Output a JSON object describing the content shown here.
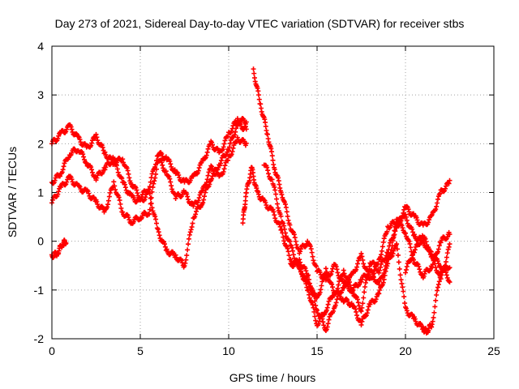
{
  "chart_data": {
    "type": "scatter",
    "title": "Day 273 of 2021, Sidereal Day-to-day VTEC variation (SDTVAR) for receiver stbs",
    "xlabel": "GPS time / hours",
    "ylabel": "SDTVAR / TECUs",
    "xlim": [
      0,
      25
    ],
    "ylim": [
      -2,
      4
    ],
    "xticks": [
      0,
      5,
      10,
      15,
      20,
      25
    ],
    "yticks": [
      -2,
      -1,
      0,
      1,
      2,
      3,
      4
    ],
    "grid": true,
    "legend": "none",
    "marker": "plus",
    "color": "#ff0000",
    "series": [
      {
        "x": [
          0,
          0.5,
          1,
          1.5,
          2,
          2.5,
          3,
          3.5,
          4,
          4.5,
          5,
          5.5,
          6,
          6.5,
          7,
          7.5,
          8,
          8.5,
          9,
          9.5,
          10,
          10.5,
          11
        ],
        "values": [
          2.0,
          2.2,
          2.35,
          2.1,
          1.9,
          2.15,
          1.8,
          1.6,
          1.7,
          1.2,
          0.9,
          1.1,
          1.8,
          1.7,
          1.4,
          1.2,
          1.3,
          1.6,
          2.0,
          1.8,
          2.2,
          2.5,
          2.45
        ]
      },
      {
        "x": [
          0,
          0.5,
          1,
          1.5,
          2,
          2.5,
          3,
          3.5,
          4,
          4.5,
          5,
          5.5,
          6,
          6.5,
          7,
          7.5,
          8,
          8.5,
          9,
          9.5,
          10,
          10.5,
          11
        ],
        "values": [
          1.2,
          1.4,
          1.8,
          1.9,
          1.6,
          1.3,
          1.5,
          1.7,
          1.2,
          0.9,
          0.8,
          1.0,
          0.2,
          -0.2,
          -0.3,
          -0.5,
          0.5,
          0.8,
          1.3,
          1.6,
          1.9,
          2.4,
          2.3
        ]
      },
      {
        "x": [
          0,
          0.5,
          1,
          1.5,
          2,
          2.5,
          3,
          3.5,
          4,
          4.5,
          5,
          5.5,
          6,
          6.5,
          7,
          7.5,
          8,
          8.5,
          9,
          9.5,
          10,
          10.5,
          11
        ],
        "values": [
          0.8,
          1.1,
          1.3,
          1.1,
          1.0,
          0.8,
          0.6,
          1.2,
          0.6,
          0.4,
          0.5,
          0.6,
          1.7,
          1.4,
          0.9,
          1.0,
          0.7,
          1.0,
          1.5,
          1.3,
          1.7,
          2.1,
          2.0
        ]
      },
      {
        "x": [
          0,
          0.3,
          0.6,
          0.8
        ],
        "values": [
          -0.3,
          -0.25,
          -0.05,
          0.0
        ]
      },
      {
        "x": [
          10.8,
          11,
          11.3,
          11.6,
          12,
          12.5,
          13,
          13.5,
          14,
          14.5,
          15,
          15.5,
          16,
          16.5,
          17,
          17.5,
          18,
          18.5,
          19,
          19.5,
          20,
          20.5,
          21,
          21.5,
          22,
          22.5
        ],
        "values": [
          0.4,
          1.0,
          1.5,
          1.0,
          0.8,
          0.6,
          0.2,
          -0.4,
          -0.5,
          -1.0,
          -1.7,
          -1.4,
          -1.0,
          -1.2,
          -1.3,
          -1.7,
          -1.3,
          -1.1,
          -0.5,
          0.4,
          0.5,
          0.1,
          0.0,
          -0.3,
          -0.5,
          -0.8
        ]
      },
      {
        "x": [
          11.4,
          11.8,
          12.2,
          12.6,
          13,
          13.5,
          14,
          14.5,
          15,
          15.5,
          16,
          16.5,
          17,
          17.5,
          18,
          18.5,
          19,
          19.5,
          20,
          20.5,
          21,
          21.5,
          22,
          22.5
        ],
        "values": [
          3.5,
          2.8,
          2.2,
          1.5,
          1.0,
          0.3,
          -0.2,
          0.0,
          -0.6,
          -0.8,
          -0.5,
          -0.9,
          -0.7,
          -0.3,
          -0.8,
          -0.4,
          0.3,
          0.4,
          0.2,
          -0.4,
          -0.7,
          -0.5,
          0.0,
          0.15
        ]
      },
      {
        "x": [
          12,
          12.5,
          13,
          13.5,
          14,
          14.5,
          15,
          15.5,
          16,
          16.5,
          17,
          17.5,
          18,
          18.5,
          19,
          19.5,
          20,
          20.5,
          21,
          21.5,
          22,
          22.5
        ],
        "values": [
          1.6,
          1.2,
          0.4,
          -0.1,
          -0.6,
          -0.9,
          -1.2,
          -0.6,
          -1.1,
          -0.6,
          -1.0,
          -1.4,
          -0.4,
          -0.6,
          -0.2,
          0.3,
          0.7,
          0.5,
          0.3,
          0.5,
          1.0,
          1.2
        ]
      },
      {
        "x": [
          13.5,
          14,
          14.5,
          15,
          15.5,
          16,
          16.5,
          17,
          17.5,
          18,
          18.5,
          19,
          19.5,
          20,
          20.5,
          21,
          21.2,
          21.5,
          22,
          22.5
        ],
        "values": [
          -0.5,
          -0.4,
          -0.7,
          -1.4,
          -1.8,
          -1.3,
          -0.9,
          -1.0,
          -0.8,
          -0.6,
          -0.9,
          -0.4,
          -0.1,
          -1.4,
          -1.6,
          -1.8,
          -1.85,
          -1.7,
          -0.6,
          -0.5
        ]
      },
      {
        "x": [
          20,
          20.5,
          21,
          21.5,
          22,
          22.5
        ],
        "values": [
          -0.6,
          -0.2,
          0.1,
          -0.3,
          -0.8,
          -0.1
        ]
      }
    ]
  }
}
